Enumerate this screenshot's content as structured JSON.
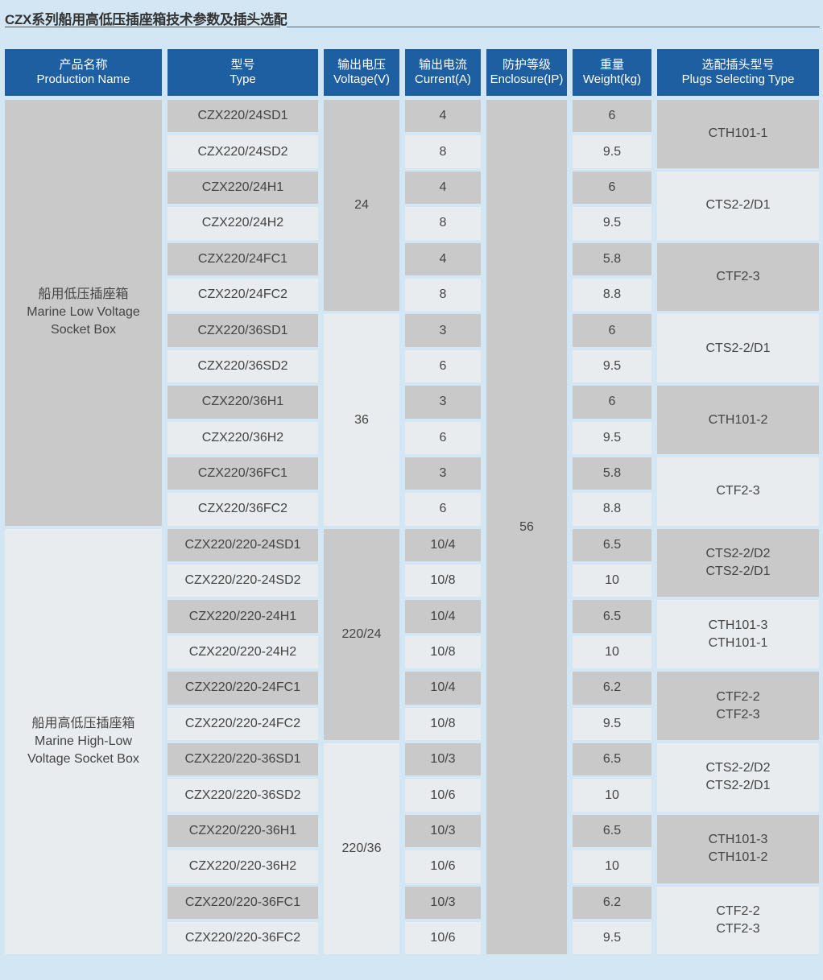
{
  "title": "CZX系列船用高低压插座箱技术参数及插头选配",
  "headers": [
    {
      "cn": "产品名称",
      "en": "Production Name"
    },
    {
      "cn": "型号",
      "en": "Type"
    },
    {
      "cn": "输出电压",
      "en": "Voltage(V)"
    },
    {
      "cn": "输出电流",
      "en": "Current(A)"
    },
    {
      "cn": "防护等级",
      "en": "Enclosure(IP)"
    },
    {
      "cn": "重量",
      "en": "Weight(kg)"
    },
    {
      "cn": "选配插头型号",
      "en": "Plugs Selecting Type"
    }
  ],
  "products": [
    {
      "cn": "船用低压插座箱",
      "en1": "Marine Low Voltage",
      "en2": "Socket Box"
    },
    {
      "cn": "船用高低压插座箱",
      "en1": "Marine High-Low",
      "en2": "Voltage Socket Box"
    }
  ],
  "types": [
    "CZX220/24SD1",
    "CZX220/24SD2",
    "CZX220/24H1",
    "CZX220/24H2",
    "CZX220/24FC1",
    "CZX220/24FC2",
    "CZX220/36SD1",
    "CZX220/36SD2",
    "CZX220/36H1",
    "CZX220/36H2",
    "CZX220/36FC1",
    "CZX220/36FC2",
    "CZX220/220-24SD1",
    "CZX220/220-24SD2",
    "CZX220/220-24H1",
    "CZX220/220-24H2",
    "CZX220/220-24FC1",
    "CZX220/220-24FC2",
    "CZX220/220-36SD1",
    "CZX220/220-36SD2",
    "CZX220/220-36H1",
    "CZX220/220-36H2",
    "CZX220/220-36FC1",
    "CZX220/220-36FC2"
  ],
  "voltages": [
    "24",
    "36",
    "220/24",
    "220/36"
  ],
  "currents": [
    "4",
    "8",
    "4",
    "8",
    "4",
    "8",
    "3",
    "6",
    "3",
    "6",
    "3",
    "6",
    "10/4",
    "10/8",
    "10/4",
    "10/8",
    "10/4",
    "10/8",
    "10/3",
    "10/6",
    "10/3",
    "10/6",
    "10/3",
    "10/6"
  ],
  "enclosure": "56",
  "weights": [
    "6",
    "9.5",
    "6",
    "9.5",
    "5.8",
    "8.8",
    "6",
    "9.5",
    "6",
    "9.5",
    "5.8",
    "8.8",
    "6.5",
    "10",
    "6.5",
    "10",
    "6.2",
    "9.5",
    "6.5",
    "10",
    "6.5",
    "10",
    "6.2",
    "9.5"
  ],
  "plugs": [
    [
      "CTH101-1"
    ],
    [
      "CTS2-2/D1"
    ],
    [
      "CTF2-3"
    ],
    [
      "CTS2-2/D1"
    ],
    [
      "CTH101-2"
    ],
    [
      "CTF2-3"
    ],
    [
      "CTS2-2/D2",
      "CTS2-2/D1"
    ],
    [
      "CTH101-3",
      "CTH101-1"
    ],
    [
      "CTF2-2",
      "CTF2-3"
    ],
    [
      "CTS2-2/D2",
      "CTS2-2/D1"
    ],
    [
      "CTH101-3",
      "CTH101-2"
    ],
    [
      "CTF2-2",
      "CTF2-3"
    ]
  ],
  "colors": {
    "header": "#1e5fa2",
    "cell_dark": "#c9c9c9",
    "cell_light": "#e9ecee",
    "background": "#d3e6f3"
  }
}
